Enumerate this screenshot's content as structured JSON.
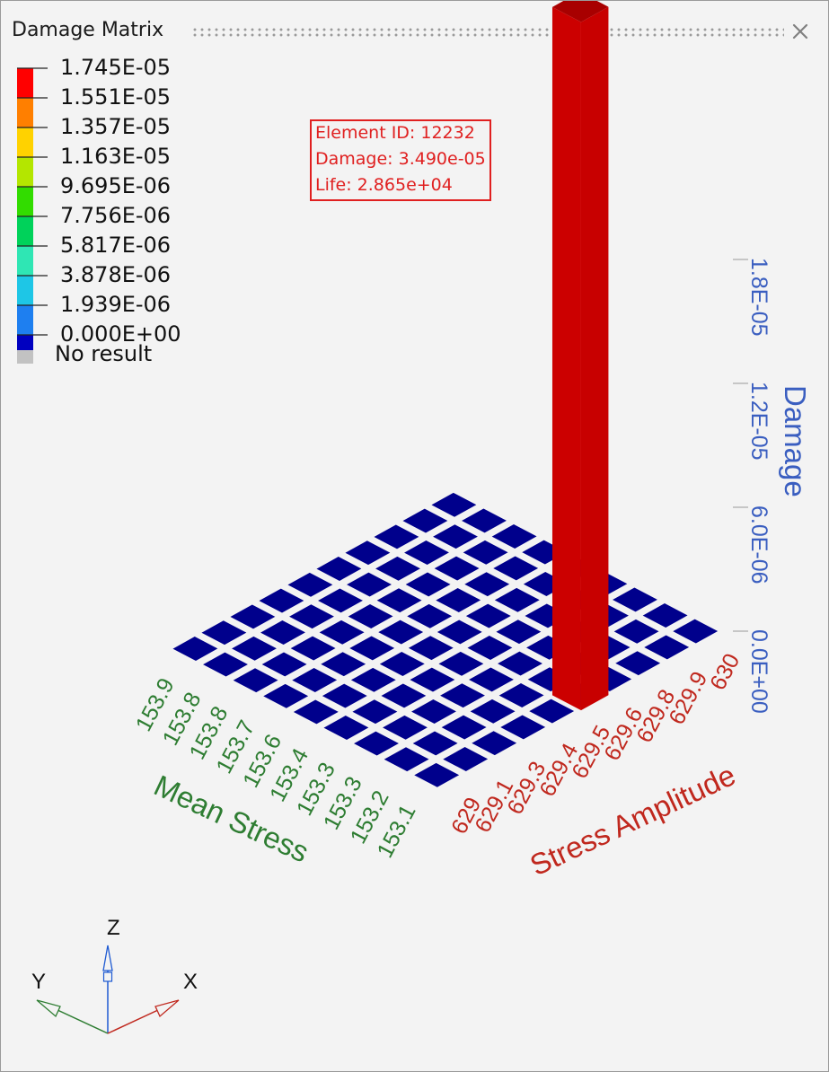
{
  "window": {
    "title": "Damage Matrix",
    "close_icon": "close-icon"
  },
  "legend": {
    "labels": [
      "1.745E-05",
      "1.551E-05",
      "1.357E-05",
      "1.163E-05",
      "9.695E-06",
      "7.756E-06",
      "5.817E-06",
      "3.878E-06",
      "1.939E-06",
      "0.000E+00"
    ],
    "colors": [
      "#ff0000",
      "#ff7f00",
      "#ffd200",
      "#b4e600",
      "#32dc00",
      "#00d25a",
      "#2fe6b4",
      "#1ec6e6",
      "#1e7ff0",
      "#0000c0"
    ],
    "no_result_label": "No result",
    "no_result_color": "#c2c2c2"
  },
  "info_box": {
    "element_id": "Element ID: 12232",
    "damage": "Damage: 3.490e-05",
    "life": "Life: 2.865e+04",
    "color": "#e02020"
  },
  "chart_data": {
    "type": "3d-bar",
    "title": "Damage Matrix",
    "x_axis": {
      "label": "Stress Amplitude",
      "ticks": [
        "629",
        "629.1",
        "629.3",
        "629.4",
        "629.5",
        "629.6",
        "629.8",
        "629.9",
        "630"
      ],
      "color": "#c0281e"
    },
    "y_axis": {
      "label": "Mean Stress",
      "ticks": [
        "153.9",
        "153.8",
        "153.8",
        "153.7",
        "153.6",
        "153.4",
        "153.3",
        "153.3",
        "153.2",
        "153.1"
      ],
      "color": "#2e7d32"
    },
    "z_axis": {
      "label": "Damage",
      "ticks": [
        "0.0E+00",
        "6.0E-06",
        "1.2E-05",
        "1.8E-05"
      ],
      "color": "#3a5ec0"
    },
    "grid": {
      "rows": 9,
      "cols": 10,
      "cell_color": "#00008c",
      "default_value": 0
    },
    "bars": [
      {
        "row": 0,
        "col": 5,
        "value": 3.49e-05,
        "color": "#cc0000"
      }
    ]
  },
  "triad": {
    "x_label": "X",
    "y_label": "Y",
    "z_label": "Z"
  }
}
